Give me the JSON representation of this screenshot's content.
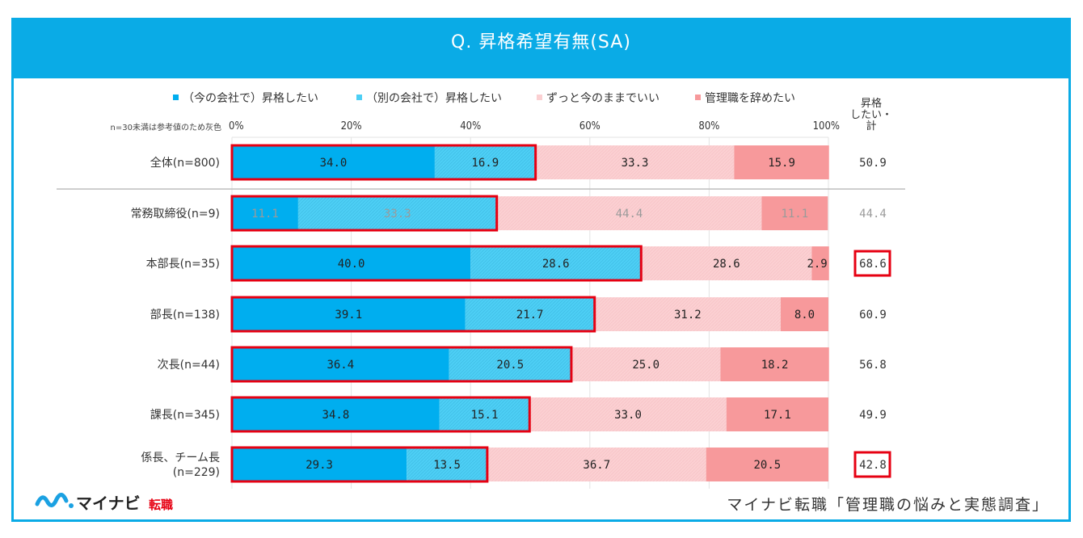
{
  "chart_data": {
    "type": "bar",
    "orientation": "horizontal",
    "stacked": "100%",
    "title": "Q. 昇格希望有無(SA)",
    "note": "n=30未満は参考値のため灰色",
    "total_header": "昇格したい・計",
    "total_header_lines": [
      "昇格",
      "したい・",
      "計"
    ],
    "xlim": [
      0,
      100
    ],
    "xticks": [
      "0%",
      "20%",
      "40%",
      "60%",
      "80%",
      "100%"
    ],
    "grid": true,
    "legend": "top",
    "categories": [
      "全体(n=800)",
      "常務取締役(n=9)",
      "本部長(n=35)",
      "部長(n=138)",
      "次長(n=44)",
      "課長(n=345)",
      "係長、チーム長(n=229)"
    ],
    "category_lines": [
      [
        "全体(n=800)"
      ],
      [
        "常務取締役(n=9)"
      ],
      [
        "本部長(n=35)"
      ],
      [
        "部長(n=138)"
      ],
      [
        "次長(n=44)"
      ],
      [
        "課長(n=345)"
      ],
      [
        "係長、チーム長",
        "(n=229)"
      ]
    ],
    "series": [
      {
        "name": "（今の会社で）昇格したい",
        "color": "#00AEEF",
        "values": [
          34.0,
          11.1,
          40.0,
          39.1,
          36.4,
          34.8,
          29.3
        ]
      },
      {
        "name": "（別の会社で）昇格したい",
        "color": "#4DCFF5",
        "values": [
          16.9,
          33.3,
          28.6,
          21.7,
          20.5,
          15.1,
          13.5
        ]
      },
      {
        "name": "ずっと今のままでいい",
        "color": "#FBD0D2",
        "values": [
          33.3,
          44.4,
          28.6,
          31.2,
          25.0,
          33.0,
          36.7
        ]
      },
      {
        "name": "管理職を辞めたい",
        "color": "#F7999B",
        "values": [
          15.9,
          11.1,
          2.9,
          8.0,
          18.2,
          17.1,
          20.5
        ]
      }
    ],
    "totals": [
      50.9,
      44.4,
      68.6,
      60.9,
      56.8,
      49.9,
      42.8
    ],
    "greyed_rows": [
      1
    ],
    "highlighted_totals": [
      2,
      6
    ],
    "highlight_color": "#E60012",
    "separator_after_row": 0
  },
  "header": {
    "title": "Q. 昇格希望有無(SA)",
    "color": "#0AABE6"
  },
  "footer": {
    "brand": "マイナビ",
    "brand_sub": "転職",
    "source": "マイナビ転職「管理職の悩みと実態調査」"
  }
}
